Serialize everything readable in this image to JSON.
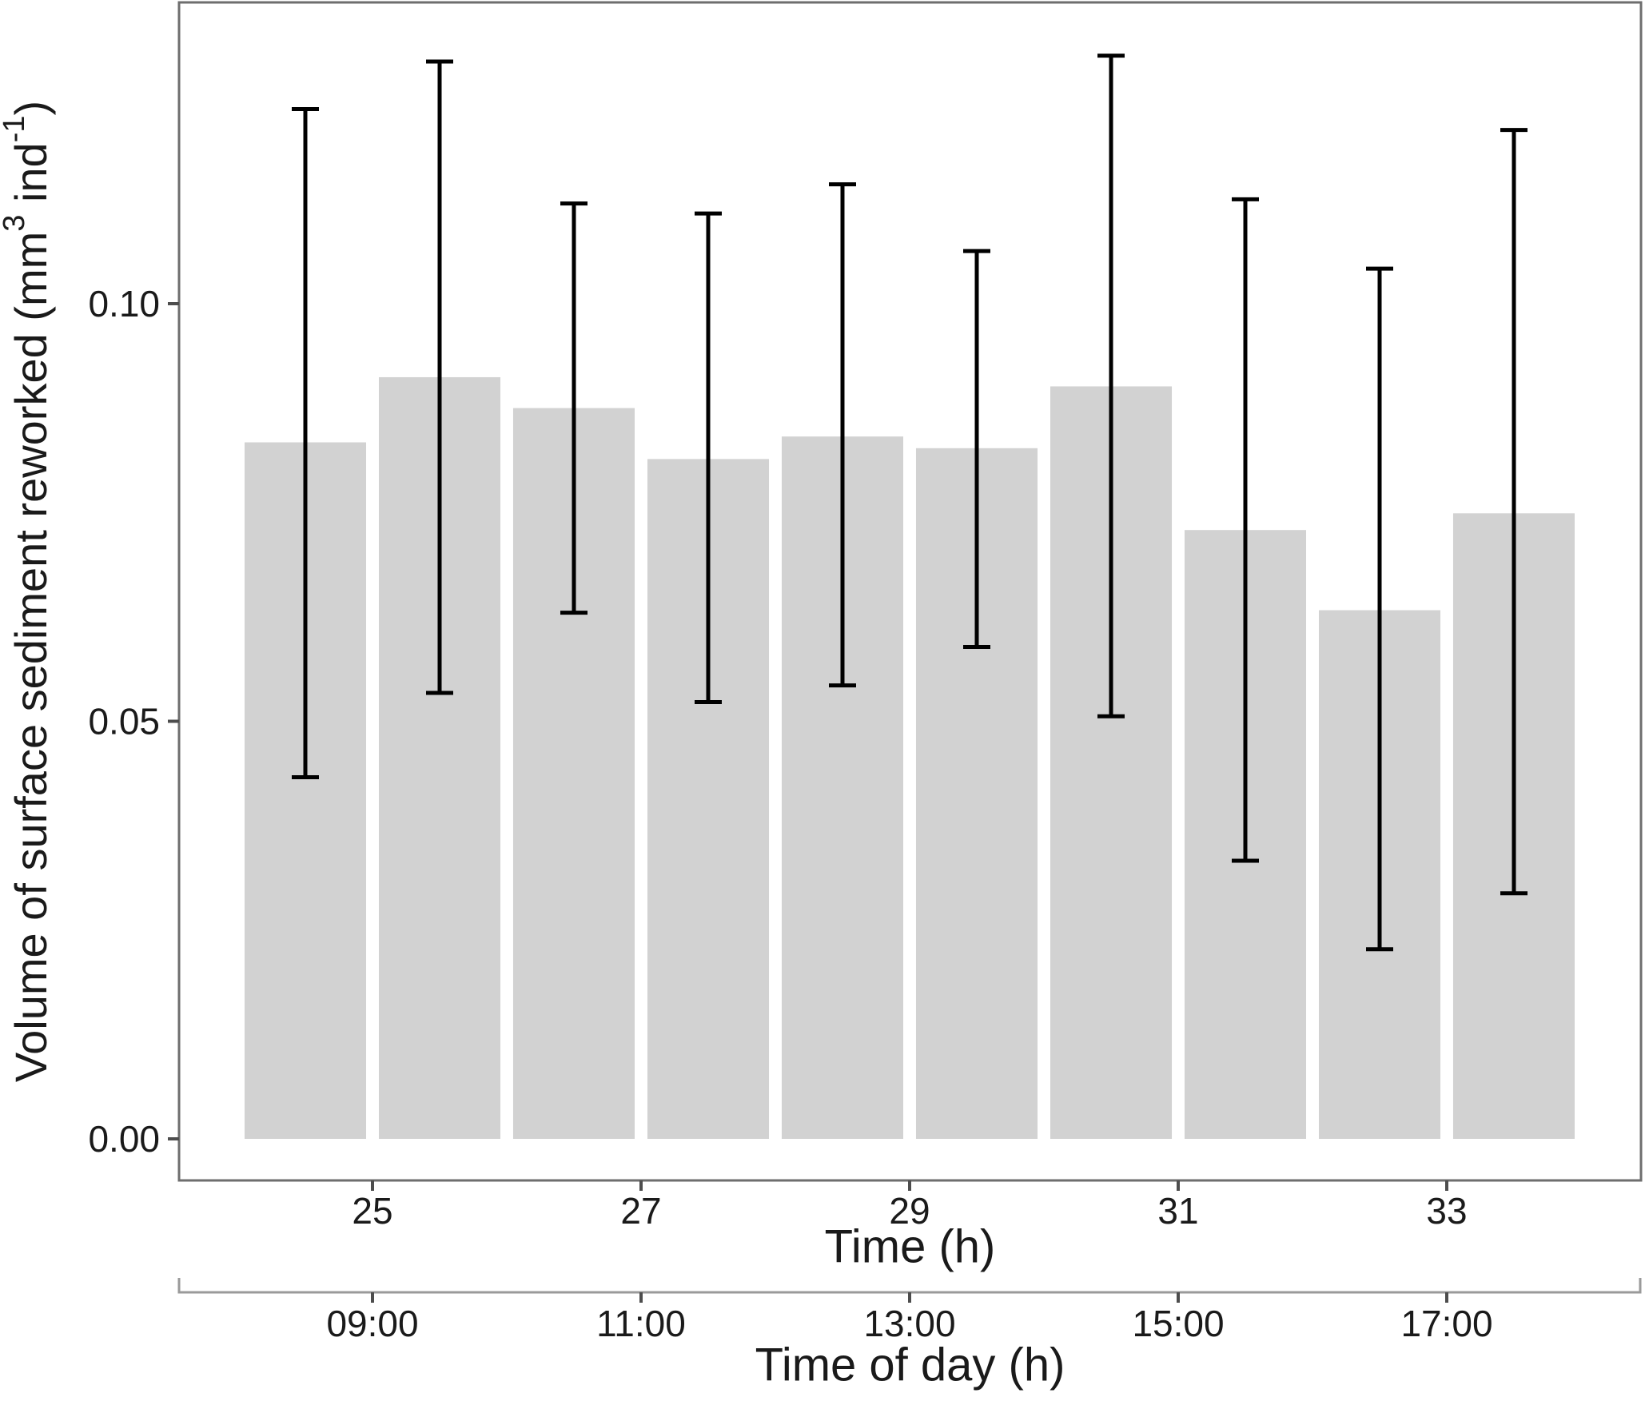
{
  "chart_data": {
    "type": "bar",
    "x": [
      24.5,
      25.5,
      26.5,
      27.5,
      28.5,
      29.5,
      30.5,
      31.5,
      32.5,
      33.5
    ],
    "values": [
      0.0834,
      0.0912,
      0.0875,
      0.0814,
      0.0841,
      0.0827,
      0.0901,
      0.0729,
      0.0633,
      0.0749
    ],
    "error_high": [
      0.1233,
      0.129,
      0.112,
      0.1108,
      0.1143,
      0.1063,
      0.1297,
      0.1125,
      0.1042,
      0.1208
    ],
    "error_low": [
      0.0433,
      0.0534,
      0.063,
      0.0523,
      0.0543,
      0.0589,
      0.0506,
      0.0333,
      0.0227,
      0.0294
    ],
    "bar_width_hours": 0.905,
    "bar_color": "#d2d2d2",
    "error_color": "#000000",
    "frame_color": "#6e6e6e",
    "tick_color": "#4d4d4d",
    "secondary_axis_color": "#9a9a9a",
    "text_color": "#1a1a1a",
    "xlabel": "Time (h)",
    "xlabel2": "Time of day (h)",
    "ylabel_parts": [
      {
        "text": "Volume of surface sediment reworked (mm",
        "sup": false
      },
      {
        "text": "3",
        "sup": true
      },
      {
        "text": " ind",
        "sup": false
      },
      {
        "text": "-1",
        "sup": true
      },
      {
        "text": ")",
        "sup": false
      }
    ],
    "x_ticks": [
      {
        "hour": 25,
        "label": "25",
        "label2": "09:00"
      },
      {
        "hour": 27,
        "label": "27",
        "label2": "11:00"
      },
      {
        "hour": 29,
        "label": "29",
        "label2": "13:00"
      },
      {
        "hour": 31,
        "label": "31",
        "label2": "15:00"
      },
      {
        "hour": 33,
        "label": "33",
        "label2": "17:00"
      }
    ],
    "y_ticks": [
      {
        "value": 0.0,
        "label": "0.00"
      },
      {
        "value": 0.05,
        "label": "0.05"
      },
      {
        "value": 0.1,
        "label": "0.10"
      }
    ],
    "xlim": [
      23.56,
      34.45
    ],
    "ylim": [
      -0.005,
      0.1361
    ],
    "grid": "off",
    "legend": "none"
  }
}
